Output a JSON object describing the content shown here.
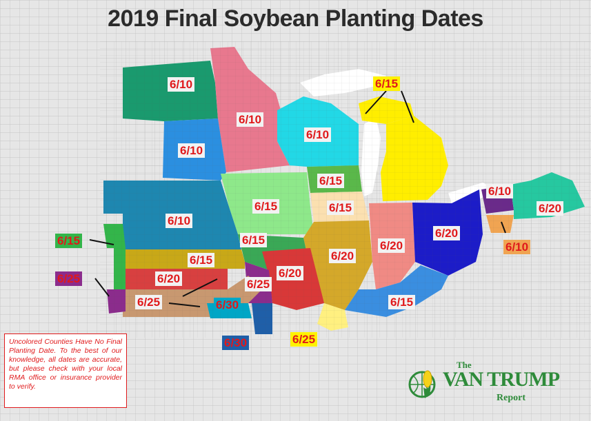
{
  "title": "2019 Final Soybean Planting Dates",
  "disclaimer": "Uncolored Counties Have No Final Planting Date. To the best of our knowledge, all dates are accurate, but please check with your local RMA office or insurance provider to verify.",
  "logo": {
    "the": "The",
    "name": "VAN TRUMP",
    "report": "Report"
  },
  "labels": {
    "nd": "6/10",
    "mn": "6/10",
    "sd": "6/10",
    "wi": "6/10",
    "mi": "6/15",
    "ia": "6/15",
    "ne": "6/10",
    "wi_s": "6/15",
    "il_n": "6/15",
    "il": "6/20",
    "in": "6/20",
    "oh": "6/20",
    "pa_w": "6/10",
    "pa_e": "6/20",
    "md": "6/10",
    "mo_n": "6/15",
    "mo": "6/20",
    "mo_se": "6/25",
    "ky": "6/15",
    "ks_n": "6/15",
    "ks_m": "6/20",
    "ks_s": "6/25",
    "ok": "6/30",
    "ar": "6/30",
    "il_s": "6/25",
    "co_n": "6/15",
    "co_s": "6/25"
  },
  "colors": {
    "nd": "#1a9a6e",
    "mn": "#e8788e",
    "sd": "#2b8fe0",
    "wi": "#22d8e6",
    "mi": "#ffee00",
    "ia": "#8ee88a",
    "ne": "#1e87b0",
    "wi_s": "#5ab84a",
    "il_n": "#fbe0b0",
    "il": "#d4a82a",
    "in": "#f08a84",
    "oh": "#1c1cc8",
    "pa_w": "#6a2a8a",
    "pa_e": "#26c8a0",
    "md": "#f0a452",
    "mo_n": "#3aa856",
    "mo": "#d83838",
    "mo_se": "#8b2c8c",
    "ky": "#3a8ee0",
    "ks_n": "#c8a818",
    "ks_m": "#d84040",
    "ks_s": "#c89870",
    "ok": "#00a6c6",
    "ar": "#1f5fa8",
    "il_s": "#fff080",
    "co_n": "#33b54a",
    "co_s": "#8b2c8c",
    "grid": "#d6d6d6",
    "text": "#e0191b"
  }
}
